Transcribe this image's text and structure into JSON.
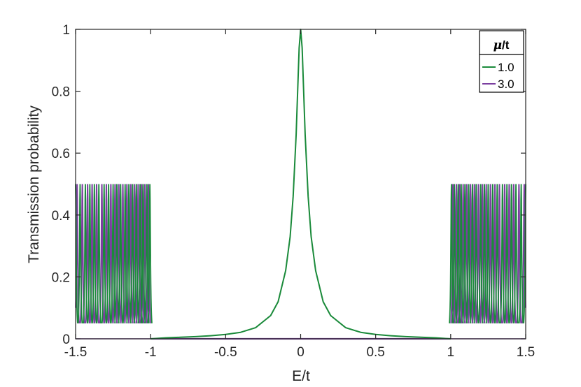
{
  "chart_data": {
    "type": "line",
    "title": "",
    "xlabel": "E/t",
    "ylabel": "Transmission probability",
    "xlim": [
      -1.5,
      1.5
    ],
    "ylim": [
      0,
      1
    ],
    "xticks": [
      "-1.5",
      "-1",
      "-0.5",
      "0",
      "0.5",
      "1",
      "1.5"
    ],
    "yticks": [
      "0",
      "0.2",
      "0.4",
      "0.6",
      "0.8",
      "1"
    ],
    "grid": false,
    "legend": {
      "title": "μ/t",
      "title_parts": {
        "mu": "μ",
        "rest": "/t"
      },
      "placement": "top-right"
    },
    "series": [
      {
        "name": "1.0",
        "color": "#1a8a3a",
        "description_values": {
          "central_peak_x": 0,
          "central_peak_y": 1.0,
          "edge_band_peak_y": 0.5,
          "edge_bands": [
            [
              -1.5,
              -1.0
            ],
            [
              1.0,
              1.5
            ]
          ]
        },
        "x": [
          -1.0,
          -0.9,
          -0.8,
          -0.7,
          -0.6,
          -0.5,
          -0.4,
          -0.3,
          -0.2,
          -0.15,
          -0.1,
          -0.07,
          -0.05,
          -0.03,
          -0.02,
          -0.01,
          0,
          0.01,
          0.02,
          0.03,
          0.05,
          0.07,
          0.1,
          0.15,
          0.2,
          0.3,
          0.4,
          0.5,
          0.6,
          0.7,
          0.8,
          0.9,
          1.0
        ],
        "y": [
          0.0,
          0.003,
          0.005,
          0.007,
          0.01,
          0.014,
          0.021,
          0.036,
          0.075,
          0.12,
          0.22,
          0.33,
          0.46,
          0.66,
          0.8,
          0.94,
          1.0,
          0.94,
          0.8,
          0.66,
          0.46,
          0.33,
          0.22,
          0.12,
          0.075,
          0.036,
          0.021,
          0.014,
          0.01,
          0.007,
          0.005,
          0.003,
          0.0
        ]
      },
      {
        "name": "3.0",
        "color": "#7b3fa0",
        "description_values": {
          "flat_region": [
            -1.0,
            1.0
          ],
          "flat_value": 0,
          "edge_band_peak_y": 0.5,
          "edge_bands": [
            [
              -1.5,
              -1.0
            ],
            [
              1.0,
              1.5
            ]
          ]
        },
        "x": [
          -1.0,
          1.0
        ],
        "y": [
          0.0,
          0.0
        ]
      }
    ],
    "resonance_peaks": {
      "series_1": [
        -1.5,
        -1.47,
        -1.435,
        -1.405,
        -1.375,
        -1.345,
        -1.31,
        -1.28,
        -1.25,
        -1.225,
        -1.2,
        -1.17,
        -1.145,
        -1.12,
        -1.095,
        -1.07,
        -1.05,
        -1.025,
        -1.005,
        1.005,
        1.025,
        1.05,
        1.07,
        1.095,
        1.12,
        1.145,
        1.17,
        1.2,
        1.225,
        1.25,
        1.28,
        1.31,
        1.345,
        1.375,
        1.405,
        1.435,
        1.47,
        1.5
      ],
      "series_2": [
        -1.49,
        -1.455,
        -1.42,
        -1.39,
        -1.36,
        -1.325,
        -1.295,
        -1.265,
        -1.237,
        -1.212,
        -1.185,
        -1.158,
        -1.132,
        -1.107,
        -1.083,
        -1.06,
        -1.038,
        -1.015,
        1.015,
        1.038,
        1.06,
        1.083,
        1.107,
        1.132,
        1.158,
        1.185,
        1.212,
        1.237,
        1.265,
        1.295,
        1.325,
        1.36,
        1.39,
        1.42,
        1.455,
        1.49
      ],
      "peak_height": 0.5
    }
  }
}
